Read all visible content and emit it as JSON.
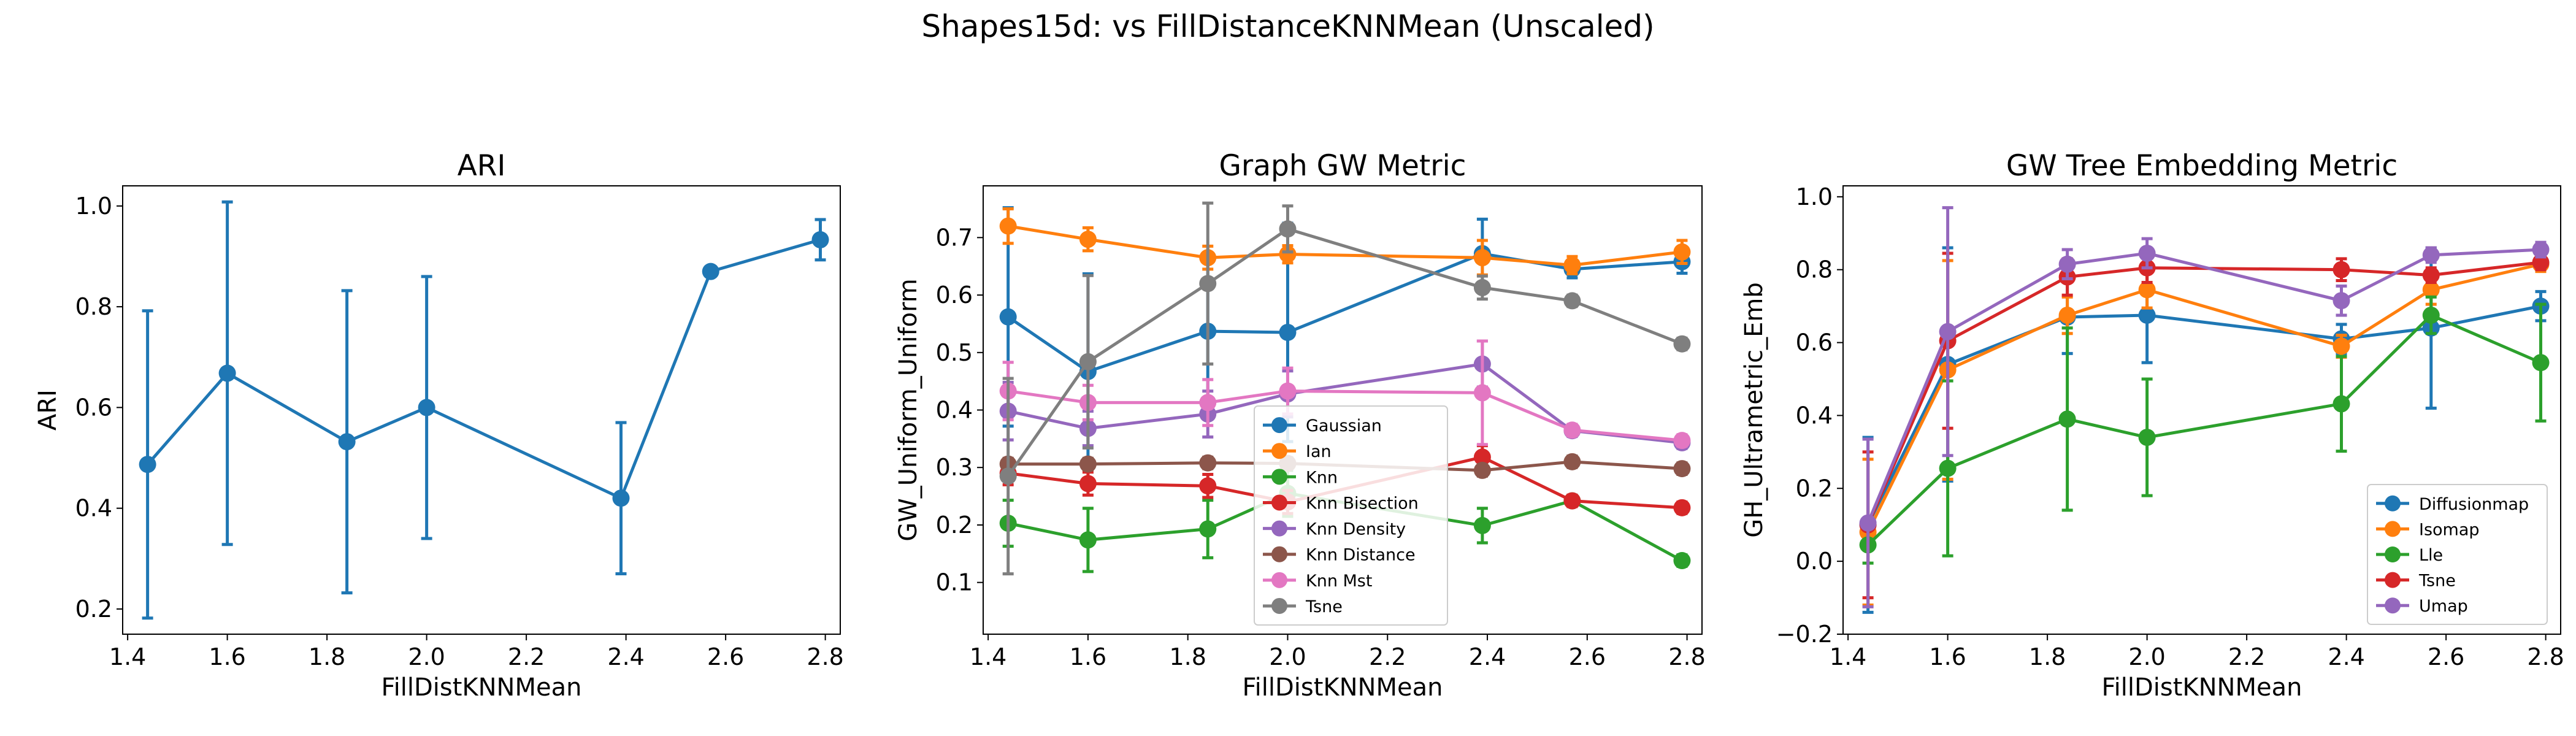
{
  "figure": {
    "suptitle": "Shapes15d: vs FillDistanceKNNMean (Unscaled)"
  },
  "chart_data": [
    {
      "type": "line",
      "title": "ARI",
      "xlabel": "FillDistKNNMean",
      "ylabel": "ARI",
      "xlim": [
        1.39,
        2.83
      ],
      "ylim": [
        0.15,
        1.04
      ],
      "xticks": [
        "1.4",
        "1.6",
        "1.8",
        "2.0",
        "2.2",
        "2.4",
        "2.6",
        "2.8"
      ],
      "yticks": [
        "0.2",
        "0.4",
        "0.6",
        "0.8",
        "1.0"
      ],
      "grid": false,
      "legend": null,
      "x": [
        1.44,
        1.6,
        1.84,
        2.0,
        2.39,
        2.57,
        2.79
      ],
      "series": [
        {
          "color": "#1f77b4",
          "values": [
            0.487,
            0.668,
            0.532,
            0.6,
            0.42,
            0.87,
            0.933
          ],
          "errors": [
            0.305,
            0.34,
            0.3,
            0.26,
            0.15,
            0.0,
            0.04
          ]
        }
      ]
    },
    {
      "type": "line",
      "title": "Graph GW Metric",
      "xlabel": "FillDistKNNMean",
      "ylabel": "GW_Uniform_Uniform",
      "xlim": [
        1.39,
        2.83
      ],
      "ylim": [
        0.01,
        0.79
      ],
      "xticks": [
        "1.4",
        "1.6",
        "1.8",
        "2.0",
        "2.2",
        "2.4",
        "2.6",
        "2.8"
      ],
      "yticks": [
        "0.1",
        "0.2",
        "0.3",
        "0.4",
        "0.5",
        "0.6",
        "0.7"
      ],
      "grid": false,
      "legend": "lower center",
      "x": [
        1.44,
        1.6,
        1.84,
        2.0,
        2.39,
        2.57,
        2.79
      ],
      "series": [
        {
          "name": "Gaussian",
          "color": "#1f77b4",
          "values": [
            0.562,
            0.467,
            0.537,
            0.535,
            0.672,
            0.645,
            0.658
          ],
          "errors": [
            0.19,
            0.17,
            0.12,
            0.19,
            0.06,
            0.015,
            0.02
          ]
        },
        {
          "name": "Ian",
          "color": "#ff7f0e",
          "values": [
            0.72,
            0.697,
            0.665,
            0.671,
            0.665,
            0.652,
            0.675
          ],
          "errors": [
            0.03,
            0.02,
            0.02,
            0.015,
            0.03,
            0.015,
            0.02
          ]
        },
        {
          "name": "Knn",
          "color": "#2ca02c",
          "values": [
            0.203,
            0.174,
            0.193,
            0.255,
            0.199,
            0.242,
            0.138
          ],
          "errors": [
            0.04,
            0.055,
            0.05,
            0.04,
            0.03,
            0.005,
            0.01
          ]
        },
        {
          "name": "Knn Bisection",
          "color": "#d62728",
          "values": [
            0.29,
            0.272,
            0.268,
            0.24,
            0.318,
            0.242,
            0.23
          ],
          "errors": [
            0.02,
            0.02,
            0.02,
            0.02,
            0.02,
            0.01,
            0.01
          ]
        },
        {
          "name": "Knn Density",
          "color": "#9467bd",
          "values": [
            0.398,
            0.368,
            0.393,
            0.428,
            0.48,
            0.364,
            0.343
          ],
          "errors": [
            0.05,
            0.03,
            0.04,
            0.04,
            0.04,
            0.01,
            0.01
          ]
        },
        {
          "name": "Knn Distance",
          "color": "#8c564b",
          "values": [
            0.306,
            0.306,
            0.308,
            0.307,
            0.295,
            0.31,
            0.298
          ],
          "errors": [
            0.01,
            0.01,
            0.01,
            0.01,
            0.01,
            0.01,
            0.01
          ]
        },
        {
          "name": "Knn Mst",
          "color": "#e377c2",
          "values": [
            0.433,
            0.413,
            0.413,
            0.433,
            0.43,
            0.365,
            0.347
          ],
          "errors": [
            0.05,
            0.03,
            0.04,
            0.04,
            0.09,
            0.01,
            0.01
          ]
        },
        {
          "name": "Tsne",
          "color": "#7f7f7f",
          "values": [
            0.285,
            0.484,
            0.62,
            0.715,
            0.613,
            0.59,
            0.515
          ],
          "errors": [
            0.17,
            0.15,
            0.14,
            0.04,
            0.02,
            0.01,
            0.01
          ]
        }
      ]
    },
    {
      "type": "line",
      "title": "GW Tree Embedding Metric",
      "xlabel": "FillDistKNNMean",
      "ylabel": "GH_Ultrametric_Emb",
      "xlim": [
        1.39,
        2.83
      ],
      "ylim": [
        -0.2,
        1.03
      ],
      "xticks": [
        "1.4",
        "1.6",
        "1.8",
        "2.0",
        "2.2",
        "2.4",
        "2.6",
        "2.8"
      ],
      "yticks": [
        "−0.2",
        "0.0",
        "0.2",
        "0.4",
        "0.6",
        "0.8",
        "1.0"
      ],
      "grid": false,
      "legend": "lower right",
      "x": [
        1.44,
        1.6,
        1.84,
        2.0,
        2.39,
        2.57,
        2.79
      ],
      "series": [
        {
          "name": "Diffusionmap",
          "color": "#1f77b4",
          "values": [
            0.1,
            0.54,
            0.67,
            0.675,
            0.61,
            0.64,
            0.7
          ],
          "errors": [
            0.24,
            0.32,
            0.1,
            0.13,
            0.04,
            0.22,
            0.04
          ]
        },
        {
          "name": "Isomap",
          "color": "#ff7f0e",
          "values": [
            0.08,
            0.525,
            0.675,
            0.745,
            0.59,
            0.745,
            0.815
          ],
          "errors": [
            0.2,
            0.3,
            0.05,
            0.05,
            0.03,
            0.04,
            0.02
          ]
        },
        {
          "name": "Lle",
          "color": "#2ca02c",
          "values": [
            0.045,
            0.255,
            0.39,
            0.34,
            0.432,
            0.675,
            0.545
          ],
          "errors": [
            0.05,
            0.24,
            0.25,
            0.16,
            0.13,
            0.05,
            0.16
          ]
        },
        {
          "name": "Tsne",
          "color": "#d62728",
          "values": [
            0.1,
            0.605,
            0.78,
            0.805,
            0.8,
            0.785,
            0.82
          ],
          "errors": [
            0.2,
            0.24,
            0.05,
            0.04,
            0.03,
            0.02,
            0.02
          ]
        },
        {
          "name": "Umap",
          "color": "#9467bd",
          "values": [
            0.105,
            0.63,
            0.815,
            0.845,
            0.715,
            0.84,
            0.855
          ],
          "errors": [
            0.23,
            0.34,
            0.04,
            0.04,
            0.04,
            0.02,
            0.02
          ]
        }
      ]
    }
  ]
}
